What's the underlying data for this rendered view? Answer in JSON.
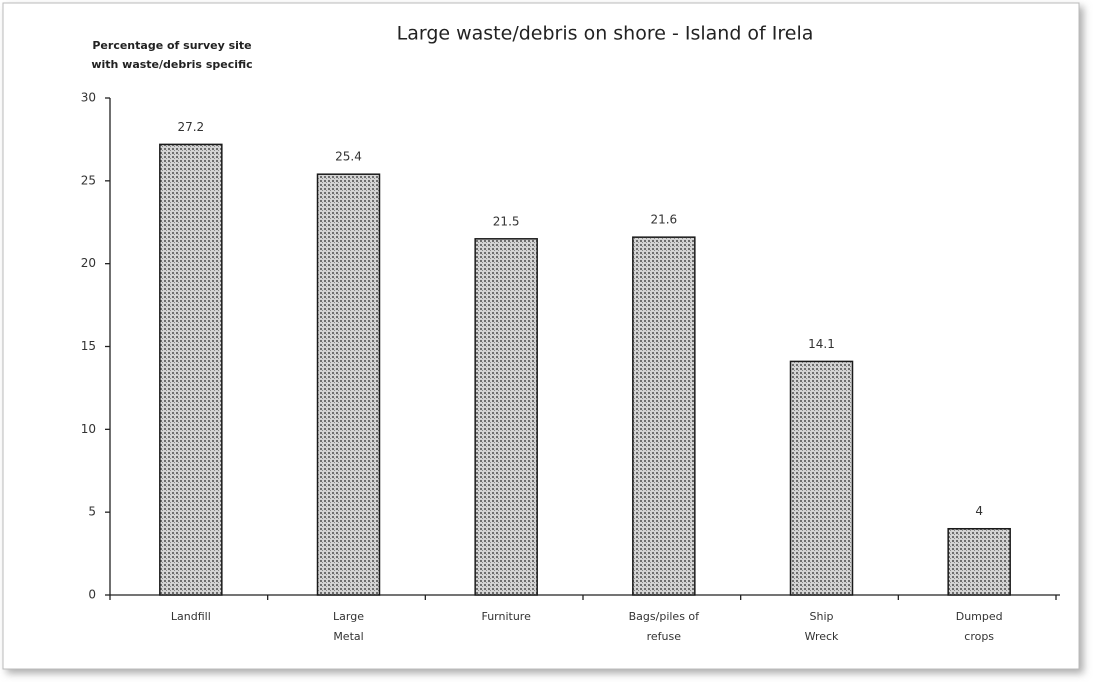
{
  "chart_data": {
    "type": "bar",
    "title": "Large waste/debris on shore - Island of Irela",
    "y_label": [
      "Percentage of survey site",
      "with waste/debris specific"
    ],
    "categories": [
      "Landfill",
      "Large Metal",
      "Furniture",
      "Bags/piles of refuse",
      "Ship Wreck",
      "Dumped crops"
    ],
    "values": [
      27.2,
      25.4,
      21.5,
      21.6,
      14.1,
      4
    ],
    "color": "#9a9a9a",
    "ylim": [
      0,
      30
    ],
    "yticks": [
      0,
      5,
      10,
      15,
      20,
      25,
      30
    ],
    "grid": false
  }
}
